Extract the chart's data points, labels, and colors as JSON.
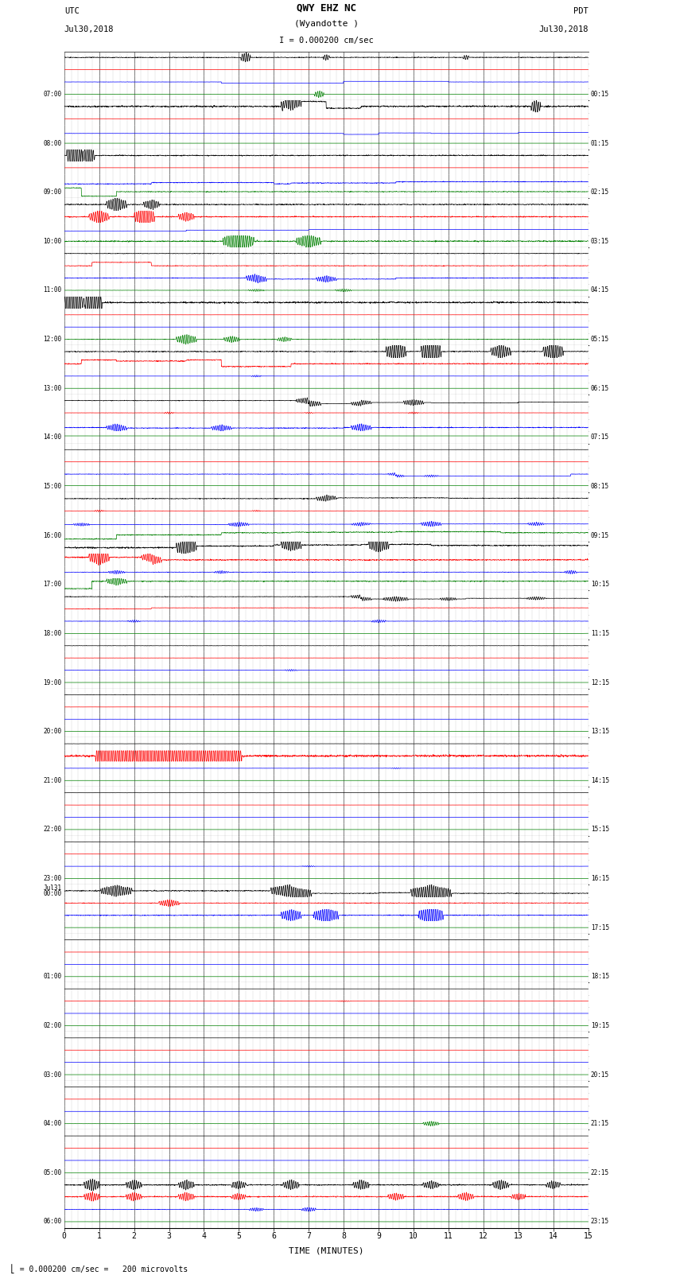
{
  "title_line1": "QWY EHZ NC",
  "title_line2": "(Wyandotte )",
  "title_scale": "I = 0.000200 cm/sec",
  "utc_label": "UTC",
  "utc_date": "Jul30,2018",
  "pdt_label": "PDT",
  "pdt_date": "Jul30,2018",
  "bottom_label": "TIME (MINUTES)",
  "bottom_scale": "= 0.000200 cm/sec =   200 microvolts",
  "left_times": [
    "07:00",
    "08:00",
    "09:00",
    "10:00",
    "11:00",
    "12:00",
    "13:00",
    "14:00",
    "15:00",
    "16:00",
    "17:00",
    "18:00",
    "19:00",
    "20:00",
    "21:00",
    "22:00",
    "23:00",
    "Jul31\n00:00",
    "01:00",
    "02:00",
    "03:00",
    "04:00",
    "05:00",
    "06:00"
  ],
  "right_times": [
    "00:15",
    "01:15",
    "02:15",
    "03:15",
    "04:15",
    "05:15",
    "06:15",
    "07:15",
    "08:15",
    "09:15",
    "10:15",
    "11:15",
    "12:15",
    "13:15",
    "14:15",
    "15:15",
    "16:15",
    "17:15",
    "18:15",
    "19:15",
    "20:15",
    "21:15",
    "22:15",
    "23:15"
  ],
  "num_rows": 24,
  "sub_traces": 4,
  "minutes": 15,
  "background_color": "#ffffff",
  "major_grid_color": "#000000",
  "minor_grid_color": "#aaaaaa",
  "trace_colors": [
    "black",
    "red",
    "blue",
    "green"
  ],
  "fig_width": 8.5,
  "fig_height": 16.13,
  "xmin": 0,
  "xmax": 15,
  "xticks": [
    0,
    1,
    2,
    3,
    4,
    5,
    6,
    7,
    8,
    9,
    10,
    11,
    12,
    13,
    14,
    15
  ]
}
